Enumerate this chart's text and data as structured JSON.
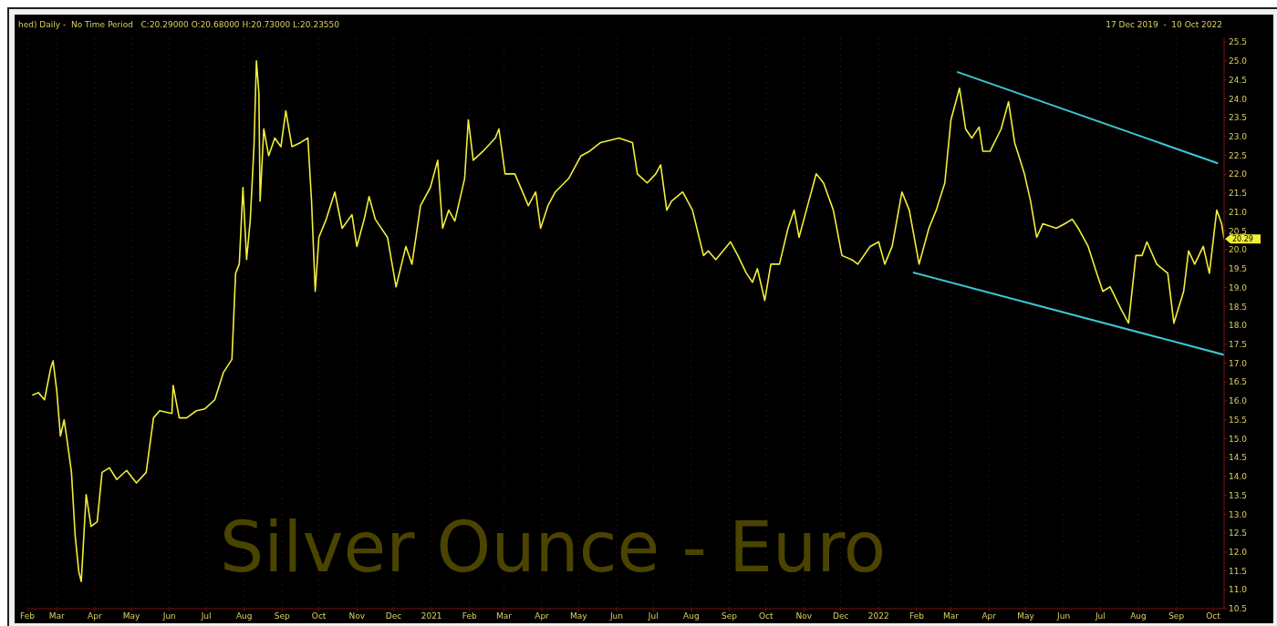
{
  "chart_data": {
    "type": "line",
    "title": "Silver Ounce - Euro",
    "annotations": [
      "hed) Daily -  No Time Period   C:20.29000 O:20.68000 H:20.73000 L:20.23550",
      "17 Dec 2019  -  10 Oct 2022",
      {
        "text": "20.29",
        "x": "2022-10-10",
        "y": 20.29
      }
    ],
    "xlim": [
      "2020-02-06",
      "2022-10-10"
    ],
    "xticks": [
      {
        "value": "2020-02-06",
        "label": "Feb"
      },
      {
        "value": "2020-03-01",
        "label": "Mar"
      },
      {
        "value": "2020-04-01",
        "label": "Apr"
      },
      {
        "value": "2020-05-01",
        "label": "May"
      },
      {
        "value": "2020-06-01",
        "label": "Jun"
      },
      {
        "value": "2020-07-01",
        "label": "Jul"
      },
      {
        "value": "2020-08-01",
        "label": "Aug"
      },
      {
        "value": "2020-09-01",
        "label": "Sep"
      },
      {
        "value": "2020-10-01",
        "label": "Oct"
      },
      {
        "value": "2020-11-01",
        "label": "Nov"
      },
      {
        "value": "2020-12-01",
        "label": "Dec"
      },
      {
        "value": "2021-01-01",
        "label": "2021"
      },
      {
        "value": "2021-02-01",
        "label": "Feb"
      },
      {
        "value": "2021-03-01",
        "label": "Mar"
      },
      {
        "value": "2021-04-01",
        "label": "Apr"
      },
      {
        "value": "2021-05-01",
        "label": "May"
      },
      {
        "value": "2021-06-01",
        "label": "Jun"
      },
      {
        "value": "2021-07-01",
        "label": "Jul"
      },
      {
        "value": "2021-08-01",
        "label": "Aug"
      },
      {
        "value": "2021-09-01",
        "label": "Sep"
      },
      {
        "value": "2021-10-01",
        "label": "Oct"
      },
      {
        "value": "2021-11-01",
        "label": "Nov"
      },
      {
        "value": "2021-12-01",
        "label": "Dec"
      },
      {
        "value": "2022-01-01",
        "label": "2022"
      },
      {
        "value": "2022-02-01",
        "label": "Feb"
      },
      {
        "value": "2022-03-01",
        "label": "Mar"
      },
      {
        "value": "2022-04-01",
        "label": "Apr"
      },
      {
        "value": "2022-05-01",
        "label": "May"
      },
      {
        "value": "2022-06-01",
        "label": "Jun"
      },
      {
        "value": "2022-07-01",
        "label": "Jul"
      },
      {
        "value": "2022-08-01",
        "label": "Aug"
      },
      {
        "value": "2022-09-01",
        "label": "Sep"
      },
      {
        "value": "2022-10-01",
        "label": "Oct"
      }
    ],
    "ylim": [
      10.5,
      25.6
    ],
    "yticks": [
      10.5,
      {
        "value": 11,
        "label": "11.0"
      },
      11.5,
      {
        "value": 12,
        "label": "12.0"
      },
      12.5,
      {
        "value": 13,
        "label": "13.0"
      },
      13.5,
      {
        "value": 14,
        "label": "14.0"
      },
      14.5,
      {
        "value": 15,
        "label": "15.0"
      },
      15.5,
      {
        "value": 16,
        "label": "16.0"
      },
      16.5,
      {
        "value": 17,
        "label": "17.0"
      },
      17.5,
      {
        "value": 18,
        "label": "18.0"
      },
      18.5,
      {
        "value": 19,
        "label": "19.0"
      },
      19.5,
      {
        "value": 20,
        "label": "20.0"
      },
      20.5,
      {
        "value": 21,
        "label": "21.0"
      },
      21.5,
      {
        "value": 22,
        "label": "22.0"
      },
      22.5,
      {
        "value": 23,
        "label": "23.0"
      },
      23.5,
      {
        "value": 24,
        "label": "24.0"
      },
      24.5,
      {
        "value": 25,
        "label": "25.0"
      },
      25.5
    ],
    "grid": "x",
    "series": [
      {
        "color": "#f2ee3a",
        "x": [
          "2020-02-10",
          "2020-02-15",
          "2020-02-20",
          "2020-02-25",
          "2020-02-27",
          "2020-03-01",
          "2020-03-04",
          "2020-03-07",
          "2020-03-10",
          "2020-03-13",
          "2020-03-16",
          "2020-03-19",
          "2020-03-21",
          "2020-03-25",
          "2020-03-29",
          "2020-04-03",
          "2020-04-07",
          "2020-04-13",
          "2020-04-19",
          "2020-04-27",
          "2020-05-05",
          "2020-05-13",
          "2020-05-19",
          "2020-05-24",
          "2020-06-03",
          "2020-06-04",
          "2020-06-09",
          "2020-06-15",
          "2020-06-23",
          "2020-06-30",
          "2020-07-08",
          "2020-07-15",
          "2020-07-22",
          "2020-07-25",
          "2020-07-28",
          "2020-07-31",
          "2020-08-03",
          "2020-08-06",
          "2020-08-09",
          "2020-08-11",
          "2020-08-13",
          "2020-08-14",
          "2020-08-17",
          "2020-08-21",
          "2020-08-26",
          "2020-08-31",
          "2020-09-04",
          "2020-09-09",
          "2020-09-16",
          "2020-09-22",
          "2020-09-25",
          "2020-09-28",
          "2020-10-01",
          "2020-10-07",
          "2020-10-14",
          "2020-10-20",
          "2020-10-28",
          "2020-11-01",
          "2020-11-07",
          "2020-11-11",
          "2020-11-16",
          "2020-11-26",
          "2020-12-03",
          "2020-12-11",
          "2020-12-16",
          "2020-12-23",
          "2020-12-31",
          "2021-01-06",
          "2021-01-10",
          "2021-01-15",
          "2021-01-20",
          "2021-01-28",
          "2021-01-31",
          "2021-02-04",
          "2021-02-12",
          "2021-02-22",
          "2021-02-25",
          "2021-03-02",
          "2021-03-10",
          "2021-03-21",
          "2021-03-27",
          "2021-03-31",
          "2021-04-06",
          "2021-04-12",
          "2021-04-23",
          "2021-05-03",
          "2021-05-10",
          "2021-05-19",
          "2021-06-03",
          "2021-06-14",
          "2021-06-18",
          "2021-06-26",
          "2021-07-03",
          "2021-07-07",
          "2021-07-12",
          "2021-07-16",
          "2021-07-25",
          "2021-08-02",
          "2021-08-11",
          "2021-08-15",
          "2021-08-21",
          "2021-09-02",
          "2021-09-08",
          "2021-09-15",
          "2021-09-20",
          "2021-09-24",
          "2021-09-30",
          "2021-10-05",
          "2021-10-12",
          "2021-10-19",
          "2021-10-24",
          "2021-10-28",
          "2021-11-03",
          "2021-11-11",
          "2021-11-17",
          "2021-11-25",
          "2021-12-02",
          "2021-12-10",
          "2021-12-15",
          "2021-12-25",
          "2022-01-01",
          "2022-01-06",
          "2022-01-12",
          "2022-01-20",
          "2022-01-26",
          "2022-02-03",
          "2022-02-11",
          "2022-02-17",
          "2022-02-24",
          "2022-03-01",
          "2022-03-08",
          "2022-03-13",
          "2022-03-18",
          "2022-03-24",
          "2022-03-27",
          "2022-04-02",
          "2022-04-11",
          "2022-04-17",
          "2022-04-22",
          "2022-04-30",
          "2022-05-05",
          "2022-05-10",
          "2022-05-15",
          "2022-05-26",
          "2022-06-02",
          "2022-06-08",
          "2022-06-13",
          "2022-06-21",
          "2022-06-28",
          "2022-07-03",
          "2022-07-09",
          "2022-07-18",
          "2022-07-24",
          "2022-07-30",
          "2022-08-04",
          "2022-08-08",
          "2022-08-16",
          "2022-08-25",
          "2022-08-30",
          "2022-09-07",
          "2022-09-11",
          "2022-09-16",
          "2022-09-23",
          "2022-09-28",
          "2022-10-04",
          "2022-10-08",
          "2022-10-10"
        ],
        "values": [
          16.15,
          16.22,
          16.03,
          16.86,
          17.06,
          16.27,
          15.07,
          15.5,
          14.83,
          14.11,
          12.44,
          11.48,
          11.22,
          13.52,
          12.68,
          12.8,
          14.11,
          14.23,
          13.92,
          14.16,
          13.83,
          14.11,
          15.55,
          15.74,
          15.67,
          16.41,
          15.55,
          15.55,
          15.74,
          15.79,
          16.03,
          16.75,
          17.1,
          19.38,
          19.62,
          21.65,
          19.74,
          20.81,
          22.73,
          25.0,
          24.16,
          21.29,
          23.2,
          22.49,
          22.96,
          22.73,
          23.68,
          22.73,
          22.84,
          22.96,
          21.29,
          18.9,
          20.33,
          20.81,
          21.53,
          20.57,
          20.93,
          20.09,
          20.81,
          21.41,
          20.81,
          20.33,
          19.02,
          20.09,
          19.62,
          21.17,
          21.65,
          22.37,
          20.57,
          21.05,
          20.76,
          21.89,
          23.44,
          22.37,
          22.61,
          22.96,
          23.2,
          22.01,
          22.01,
          21.17,
          21.53,
          20.57,
          21.17,
          21.53,
          21.89,
          22.49,
          22.61,
          22.84,
          22.96,
          22.84,
          22.01,
          21.77,
          22.01,
          22.25,
          21.05,
          21.29,
          21.53,
          21.05,
          19.85,
          19.97,
          19.74,
          20.21,
          19.85,
          19.38,
          19.14,
          19.5,
          18.66,
          19.62,
          19.62,
          20.57,
          21.05,
          20.33,
          21.05,
          22.01,
          21.77,
          21.05,
          19.85,
          19.74,
          19.62,
          20.09,
          20.21,
          19.62,
          20.09,
          21.53,
          21.05,
          19.62,
          20.57,
          21.05,
          21.77,
          23.44,
          24.28,
          23.2,
          22.96,
          23.25,
          22.61,
          22.61,
          23.2,
          23.92,
          22.84,
          22.01,
          21.29,
          20.33,
          20.69,
          20.57,
          20.69,
          20.81,
          20.57,
          20.09,
          19.38,
          18.9,
          19.02,
          18.42,
          18.06,
          19.85,
          19.85,
          20.21,
          19.62,
          19.38,
          18.06,
          18.9,
          19.97,
          19.62,
          20.09,
          19.38,
          21.05,
          20.69,
          20.29
        ]
      },
      {
        "color": "#3cc8d2",
        "x": [
          "2022-03-06",
          "2022-10-05"
        ],
        "values": [
          24.71,
          22.29
        ]
      },
      {
        "color": "#3cc8d2",
        "x": [
          "2022-01-29",
          "2022-10-10"
        ],
        "values": [
          19.4,
          17.22
        ]
      }
    ]
  }
}
